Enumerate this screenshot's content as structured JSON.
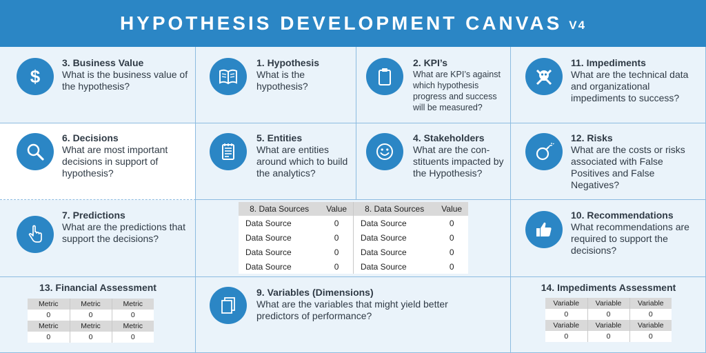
{
  "header": {
    "title": "HYPOTHESIS DEVELOPMENT CANVAS",
    "version": "V4"
  },
  "cells": {
    "business_value": {
      "title": "3. Business Value",
      "question": "What is the business value of the hypothesis?",
      "icon": "dollar-icon"
    },
    "hypothesis": {
      "title": "1. Hypothesis",
      "question": "What is the hypothesis?",
      "icon": "book-icon"
    },
    "kpis": {
      "title": "2. KPI’s",
      "question": "What are KPI’s against which hypothesis progress and success will be measured?",
      "icon": "clipboard-icon"
    },
    "impediments": {
      "title": "11. Impediments",
      "question": "What are the technical data and organizational impediments to success?",
      "icon": "skull-crossbones-icon"
    },
    "decisions": {
      "title": "6. Decisions",
      "question": "What are most important decisions in support of hypothesis?",
      "icon": "magnifier-icon"
    },
    "entities": {
      "title": "5. Entities",
      "question": "What are entities around which to build the analytics?",
      "icon": "notepad-icon"
    },
    "stakeholders": {
      "title": "4. Stakeholders",
      "question": "What are the con- stituents impacted by the Hypothesis?",
      "icon": "smiley-icon"
    },
    "risks": {
      "title": "12. Risks",
      "question": "What are the costs or risks associated with False Positives and False Negatives?",
      "icon": "bomb-icon"
    },
    "predictions": {
      "title": "7. Predictions",
      "question": "What are the predictions that support the decisions?",
      "icon": "pointer-hand-icon"
    },
    "recommendations": {
      "title": "10. Recommendations",
      "question": "What recommendations are required to support the decisions?",
      "icon": "thumbs-up-icon"
    },
    "variables": {
      "title": "9. Variables (Dimensions)",
      "question": "What are the variables that might yield better predictors of performance?",
      "icon": "documents-icon"
    }
  },
  "data_sources": {
    "headers": [
      "8. Data Sources",
      "Value",
      "8. Data Sources",
      "Value"
    ],
    "rows": [
      [
        "Data Source",
        "0",
        "Data Source",
        "0"
      ],
      [
        "Data Source",
        "0",
        "Data Source",
        "0"
      ],
      [
        "Data Source",
        "0",
        "Data Source",
        "0"
      ],
      [
        "Data Source",
        "0",
        "Data Source",
        "0"
      ]
    ]
  },
  "financial": {
    "title": "13. Financial Assessment",
    "rows": [
      [
        "Metric",
        "Metric",
        "Metric"
      ],
      [
        "0",
        "0",
        "0"
      ],
      [
        "Metric",
        "Metric",
        "Metric"
      ],
      [
        "0",
        "0",
        "0"
      ]
    ]
  },
  "impediments_assessment": {
    "title": "14. Impediments Assessment",
    "rows": [
      [
        "Variable",
        "Variable",
        "Variable"
      ],
      [
        "0",
        "0",
        "0"
      ],
      [
        "Variable",
        "Variable",
        "Variable"
      ],
      [
        "0",
        "0",
        "0"
      ]
    ]
  },
  "colors": {
    "brand_blue": "#2b86c5",
    "cell_bg": "#eaf3fa",
    "text": "#2f3a45"
  }
}
